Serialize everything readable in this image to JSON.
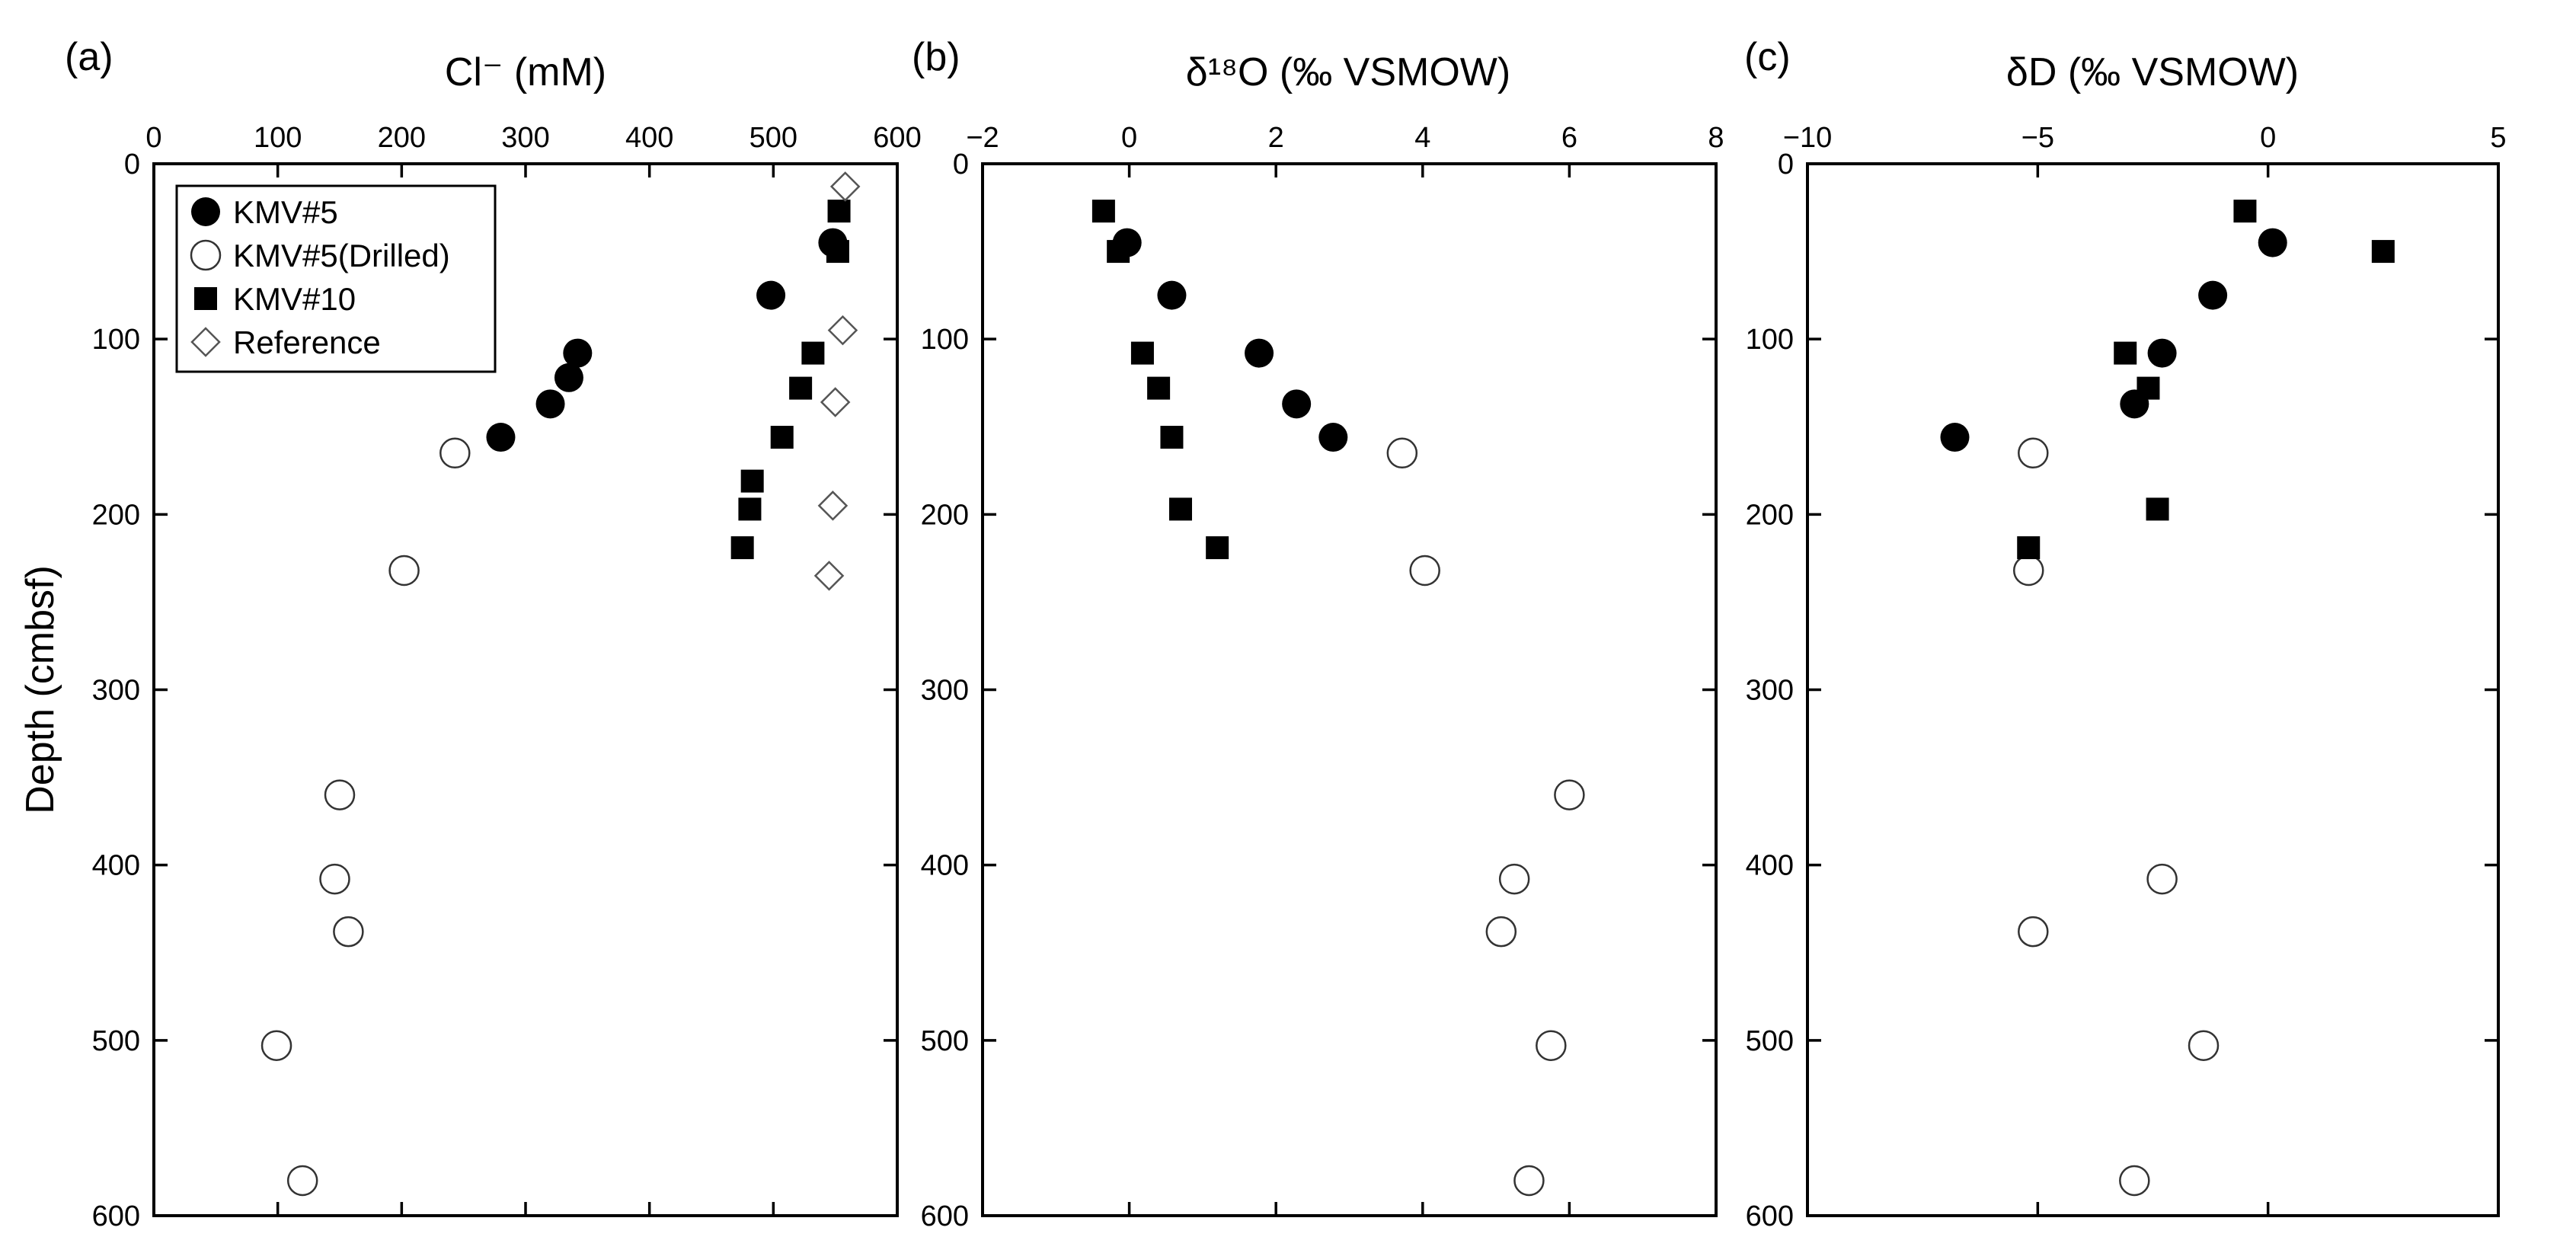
{
  "chart_data": [
    {
      "type": "scatter",
      "panel_label": "(a)",
      "title": "Cl⁻ (mM)",
      "xlabel": "Cl⁻ (mM)",
      "ylabel": "Depth (cmbsf)",
      "xlim": [
        0,
        600
      ],
      "ylim": [
        0,
        600
      ],
      "xticks": [
        "0",
        "100",
        "200",
        "300",
        "400",
        "500",
        "600"
      ],
      "yticks": [
        "0",
        "100",
        "200",
        "300",
        "400",
        "500",
        "600"
      ],
      "legend": {
        "placement": "top-left",
        "entries": [
          {
            "name": "KMV#5",
            "marker": "filled-circle"
          },
          {
            "name": "KMV#5(Drilled)",
            "marker": "open-circle"
          },
          {
            "name": "KMV#10",
            "marker": "filled-square"
          },
          {
            "name": "Reference",
            "marker": "open-diamond"
          }
        ]
      },
      "series": [
        {
          "name": "KMV#5",
          "marker": "filled-circle",
          "points": [
            [
              548,
              45
            ],
            [
              498,
              75
            ],
            [
              342,
              108
            ],
            [
              335,
              122
            ],
            [
              320,
              137
            ],
            [
              280,
              156
            ]
          ]
        },
        {
          "name": "KMV#5(Drilled)",
          "marker": "open-circle",
          "points": [
            [
              243,
              165
            ],
            [
              202,
              232
            ],
            [
              150,
              360
            ],
            [
              146,
              408
            ],
            [
              157,
              438
            ],
            [
              99,
              503
            ],
            [
              120,
              580
            ]
          ]
        },
        {
          "name": "KMV#10",
          "marker": "filled-square",
          "points": [
            [
              553,
              27
            ],
            [
              552,
              50
            ],
            [
              532,
              108
            ],
            [
              522,
              128
            ],
            [
              507,
              156
            ],
            [
              483,
              181
            ],
            [
              481,
              197
            ],
            [
              475,
              219
            ]
          ]
        },
        {
          "name": "Reference",
          "marker": "open-diamond",
          "points": [
            [
              558,
              13
            ],
            [
              556,
              95
            ],
            [
              550,
              136
            ],
            [
              548,
              195
            ],
            [
              545,
              235
            ]
          ]
        }
      ]
    },
    {
      "type": "scatter",
      "panel_label": "(b)",
      "title": "δ¹⁸O (‰ VSMOW)",
      "xlabel": "δ¹⁸O (‰ VSMOW)",
      "ylabel": "",
      "xlim": [
        -2,
        8
      ],
      "ylim": [
        0,
        600
      ],
      "xticks": [
        "−2",
        "0",
        "2",
        "4",
        "6",
        "8"
      ],
      "yticks": [
        "0",
        "100",
        "200",
        "300",
        "400",
        "500",
        "600"
      ],
      "series": [
        {
          "name": "KMV#5",
          "marker": "filled-circle",
          "points": [
            [
              -0.03,
              45
            ],
            [
              0.58,
              75
            ],
            [
              1.77,
              108
            ],
            [
              2.28,
              137
            ],
            [
              2.78,
              156
            ]
          ]
        },
        {
          "name": "KMV#5(Drilled)",
          "marker": "open-circle",
          "points": [
            [
              3.72,
              165
            ],
            [
              4.03,
              232
            ],
            [
              6.0,
              360
            ],
            [
              5.25,
              408
            ],
            [
              5.07,
              438
            ],
            [
              5.75,
              503
            ],
            [
              5.45,
              580
            ]
          ]
        },
        {
          "name": "KMV#10",
          "marker": "filled-square",
          "points": [
            [
              -0.35,
              27
            ],
            [
              -0.15,
              50
            ],
            [
              0.18,
              108
            ],
            [
              0.4,
              128
            ],
            [
              0.58,
              156
            ],
            [
              0.7,
              197
            ],
            [
              1.2,
              219
            ]
          ]
        }
      ]
    },
    {
      "type": "scatter",
      "panel_label": "(c)",
      "title": "δD (‰ VSMOW)",
      "xlabel": "δD (‰ VSMOW)",
      "ylabel": "",
      "xlim": [
        -10,
        5
      ],
      "ylim": [
        0,
        600
      ],
      "xticks": [
        "−10",
        "−5",
        "0",
        "5"
      ],
      "yticks": [
        "0",
        "100",
        "200",
        "300",
        "400",
        "500",
        "600"
      ],
      "series": [
        {
          "name": "KMV#5",
          "marker": "filled-circle",
          "points": [
            [
              0.1,
              45
            ],
            [
              -1.2,
              75
            ],
            [
              -2.3,
              108
            ],
            [
              -2.9,
              137
            ],
            [
              -6.8,
              156
            ]
          ]
        },
        {
          "name": "KMV#5(Drilled)",
          "marker": "open-circle",
          "points": [
            [
              -5.1,
              165
            ],
            [
              -5.2,
              232
            ],
            [
              -2.3,
              408
            ],
            [
              -5.1,
              438
            ],
            [
              -1.4,
              503
            ],
            [
              -2.9,
              580
            ]
          ]
        },
        {
          "name": "KMV#10",
          "marker": "filled-square",
          "points": [
            [
              -0.5,
              27
            ],
            [
              2.5,
              50
            ],
            [
              -3.1,
              108
            ],
            [
              -2.6,
              128
            ],
            [
              -2.4,
              197
            ],
            [
              -5.2,
              219
            ]
          ]
        }
      ]
    }
  ]
}
